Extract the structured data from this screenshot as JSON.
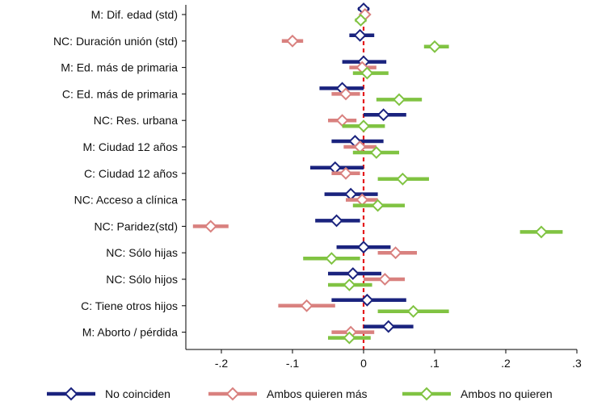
{
  "chart_data": {
    "type": "scatter",
    "subtype": "coefficient-plot-with-ci",
    "title": "",
    "xlabel": "",
    "ylabel": "",
    "xlim": [
      -0.25,
      0.3
    ],
    "xticks": [
      -0.2,
      -0.1,
      0,
      0.1,
      0.2,
      0.3
    ],
    "xtick_labels": [
      "-.2",
      "-.1",
      "0",
      ".1",
      ".2",
      ".3"
    ],
    "reference_line": {
      "x": 0,
      "style": "dashed",
      "color": "#e41a1c"
    },
    "grid": false,
    "legend_position": "bottom",
    "categories": [
      "M: Dif. edad (std)",
      "NC: Duración unión (std)",
      "M: Ed. más de primaria",
      "C: Ed. más de primaria",
      "NC: Res. urbana",
      "M: Ciudad 12 años",
      "C: Ciudad 12 años",
      "NC: Acceso a clínica",
      "NC: Paridez(std)",
      "NC: Sólo hijas",
      "NC: Sólo hijos",
      "C: Tiene otros hijos",
      "M: Aborto / pérdida"
    ],
    "series": [
      {
        "name": "No coinciden",
        "color": "#1a237e",
        "estimates": [
          0.0,
          -0.005,
          0.0,
          -0.03,
          0.028,
          -0.012,
          -0.04,
          -0.018,
          -0.038,
          0.0,
          -0.015,
          0.005,
          0.035
        ],
        "ci_low": [
          -0.008,
          -0.02,
          -0.03,
          -0.062,
          0.0,
          -0.045,
          -0.075,
          -0.055,
          -0.068,
          -0.038,
          -0.05,
          -0.045,
          0.0
        ],
        "ci_high": [
          0.008,
          0.015,
          0.032,
          0.0,
          0.06,
          0.028,
          0.0,
          0.02,
          -0.005,
          0.038,
          0.025,
          0.06,
          0.07
        ]
      },
      {
        "name": "Ambos quieren más",
        "color": "#d9817f",
        "estimates": [
          0.002,
          -0.1,
          -0.002,
          -0.025,
          -0.03,
          -0.005,
          -0.025,
          -0.002,
          -0.215,
          0.045,
          0.03,
          -0.08,
          -0.018
        ],
        "ci_low": [
          -0.005,
          -0.115,
          -0.02,
          -0.045,
          -0.05,
          -0.028,
          -0.045,
          -0.025,
          -0.24,
          0.02,
          0.0,
          -0.12,
          -0.045
        ],
        "ci_high": [
          0.008,
          -0.085,
          0.018,
          -0.005,
          -0.01,
          0.018,
          -0.005,
          0.02,
          -0.19,
          0.075,
          0.058,
          -0.04,
          0.015
        ]
      },
      {
        "name": "Ambos no quieren",
        "color": "#80c342",
        "estimates": [
          -0.004,
          0.1,
          0.005,
          0.05,
          0.0,
          0.018,
          0.055,
          0.02,
          0.25,
          -0.045,
          -0.02,
          0.07,
          -0.02
        ],
        "ci_low": [
          -0.012,
          0.085,
          -0.015,
          0.018,
          -0.03,
          -0.015,
          0.02,
          -0.015,
          0.22,
          -0.085,
          -0.05,
          0.02,
          -0.05
        ],
        "ci_high": [
          0.004,
          0.12,
          0.035,
          0.082,
          0.03,
          0.05,
          0.092,
          0.058,
          0.28,
          -0.005,
          0.012,
          0.12,
          0.01
        ]
      }
    ]
  }
}
